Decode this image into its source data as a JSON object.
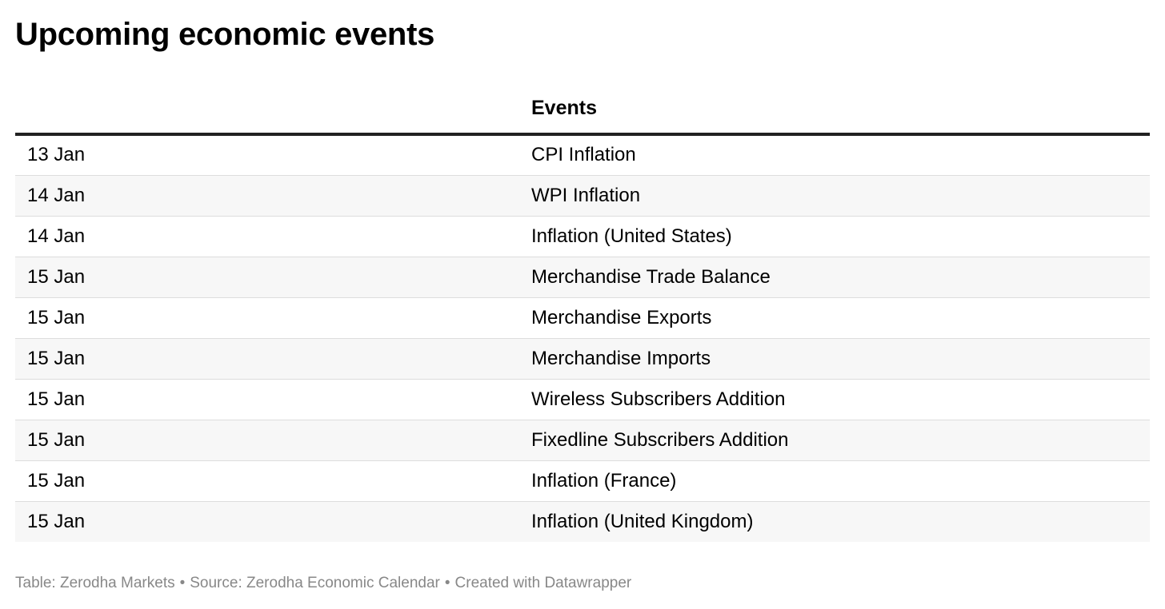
{
  "title": "Upcoming economic events",
  "chart_data": {
    "type": "table",
    "title": "Upcoming economic events",
    "columns": [
      "",
      "Events"
    ],
    "rows": [
      {
        "date": "13 Jan",
        "event": "CPI Inflation"
      },
      {
        "date": "14 Jan",
        "event": "WPI Inflation"
      },
      {
        "date": "14 Jan",
        "event": "Inflation (United States)"
      },
      {
        "date": "15 Jan",
        "event": "Merchandise Trade Balance"
      },
      {
        "date": "15 Jan",
        "event": "Merchandise Exports"
      },
      {
        "date": "15 Jan",
        "event": "Merchandise Imports"
      },
      {
        "date": "15 Jan",
        "event": "Wireless Subscribers Addition"
      },
      {
        "date": "15 Jan",
        "event": "Fixedline Subscribers Addition"
      },
      {
        "date": "15 Jan",
        "event": "Inflation (France)"
      },
      {
        "date": "15 Jan",
        "event": "Inflation (United Kingdom)"
      }
    ]
  },
  "footer": {
    "table": "Table: Zerodha Markets",
    "source": "Source: Zerodha Economic Calendar",
    "credit": "Created with Datawrapper",
    "separator": "•"
  },
  "colors": {
    "text": "#000000",
    "header_rule": "#222222",
    "row_alt_bg": "#f7f7f7",
    "row_divider": "#dddddd",
    "footer_text": "#888888"
  }
}
